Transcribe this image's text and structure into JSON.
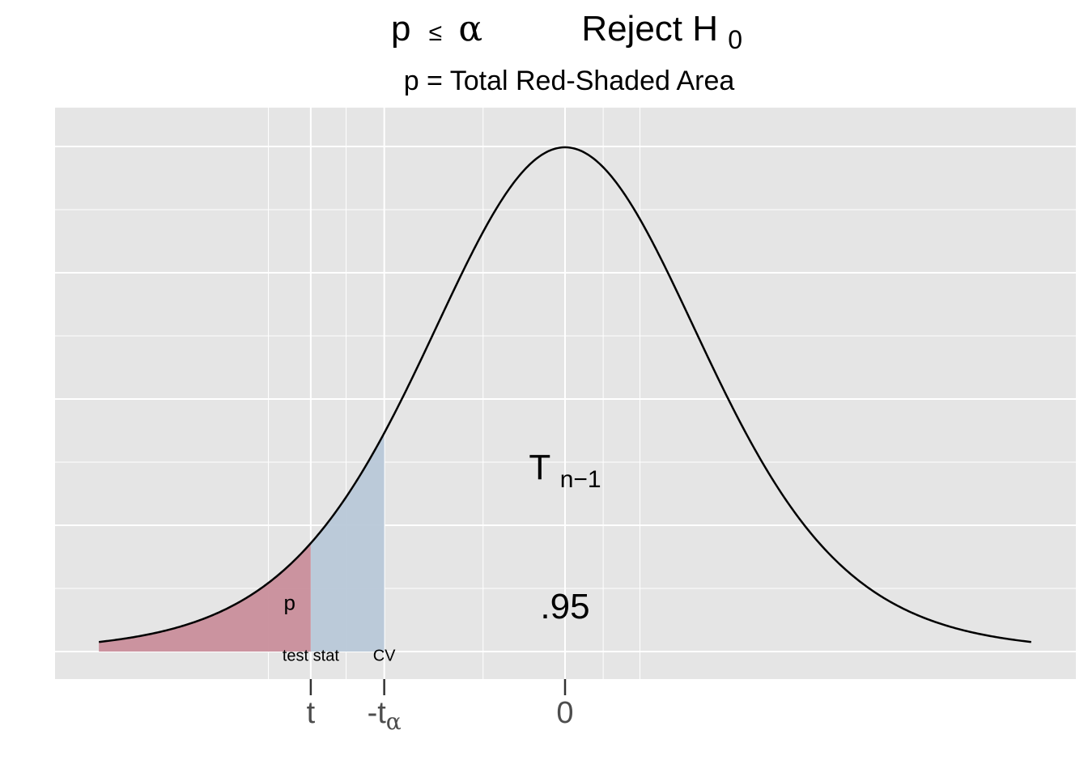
{
  "chart_data": {
    "type": "area",
    "title": {
      "condition_p": "p",
      "condition_le": "≤",
      "condition_alpha": "α",
      "decision_main": "Reject H",
      "decision_sub": "0"
    },
    "subtitle": "p = Total Red-Shaded Area",
    "distribution": "t",
    "distribution_label": {
      "main": "T",
      "sub": "n−1"
    },
    "xlim": [
      -3.3,
      3.3
    ],
    "ylim": [
      0,
      0.42
    ],
    "grid": true,
    "x_ticks": [
      {
        "x": -1.8,
        "main": "t",
        "sub": ""
      },
      {
        "x": -1.28,
        "main": "-t",
        "sub": "α"
      },
      {
        "x": 0,
        "main": "0",
        "sub": ""
      }
    ],
    "test_statistic": -1.8,
    "critical_value": -1.28,
    "shaded_regions": [
      {
        "name": "p-value region",
        "from": -3.3,
        "to": -1.8,
        "color": "#c98e9b"
      },
      {
        "name": "alpha region",
        "from": -1.8,
        "to": -1.28,
        "color": "#b8c8d8"
      }
    ],
    "annotations": [
      {
        "id": "p",
        "text": "p",
        "x": -1.95,
        "y": 0.037
      },
      {
        "id": "test-stat",
        "text": "test stat",
        "x": -1.8,
        "y": -0.001
      },
      {
        "id": "cv",
        "text": "CV",
        "x": -1.28,
        "y": -0.001
      },
      {
        "id": "conf",
        "text": ".95",
        "x": 0,
        "y": 0.035
      }
    ],
    "colors": {
      "panel": "#e5e5e5",
      "grid": "#ffffff",
      "curve": "#000000",
      "tick_text": "#4d4d4d"
    }
  }
}
